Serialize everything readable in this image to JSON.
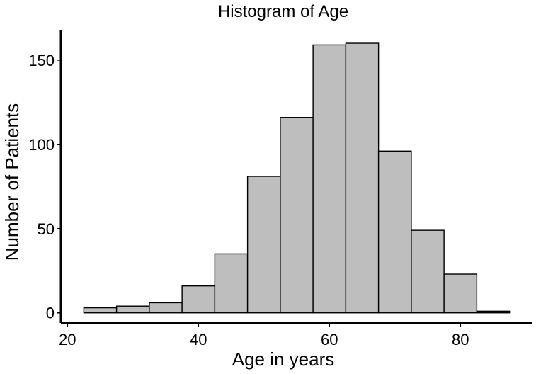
{
  "chart_data": {
    "type": "bar",
    "title": "Histogram of Age",
    "xlabel": "Age in years",
    "ylabel": "Number of Patients",
    "bin_width": 5,
    "bins": [
      {
        "from": 22.5,
        "to": 27.5,
        "count": 3
      },
      {
        "from": 27.5,
        "to": 32.5,
        "count": 4
      },
      {
        "from": 32.5,
        "to": 37.5,
        "count": 6
      },
      {
        "from": 37.5,
        "to": 42.5,
        "count": 16
      },
      {
        "from": 42.5,
        "to": 47.5,
        "count": 35
      },
      {
        "from": 47.5,
        "to": 52.5,
        "count": 81
      },
      {
        "from": 52.5,
        "to": 57.5,
        "count": 116
      },
      {
        "from": 57.5,
        "to": 62.5,
        "count": 159
      },
      {
        "from": 62.5,
        "to": 67.5,
        "count": 160
      },
      {
        "from": 67.5,
        "to": 72.5,
        "count": 96
      },
      {
        "from": 72.5,
        "to": 77.5,
        "count": 49
      },
      {
        "from": 77.5,
        "to": 82.5,
        "count": 23
      },
      {
        "from": 82.5,
        "to": 87.5,
        "count": 1
      }
    ],
    "xlim": [
      19,
      91
    ],
    "ylim": [
      -6,
      168
    ],
    "xticks": [
      20,
      40,
      60,
      80
    ],
    "yticks": [
      0,
      50,
      100,
      150
    ],
    "grid": false,
    "legend": "none",
    "colors": {
      "bar_fill": "#bebebe",
      "bar_stroke": "#000000",
      "axis": "#000000"
    }
  }
}
